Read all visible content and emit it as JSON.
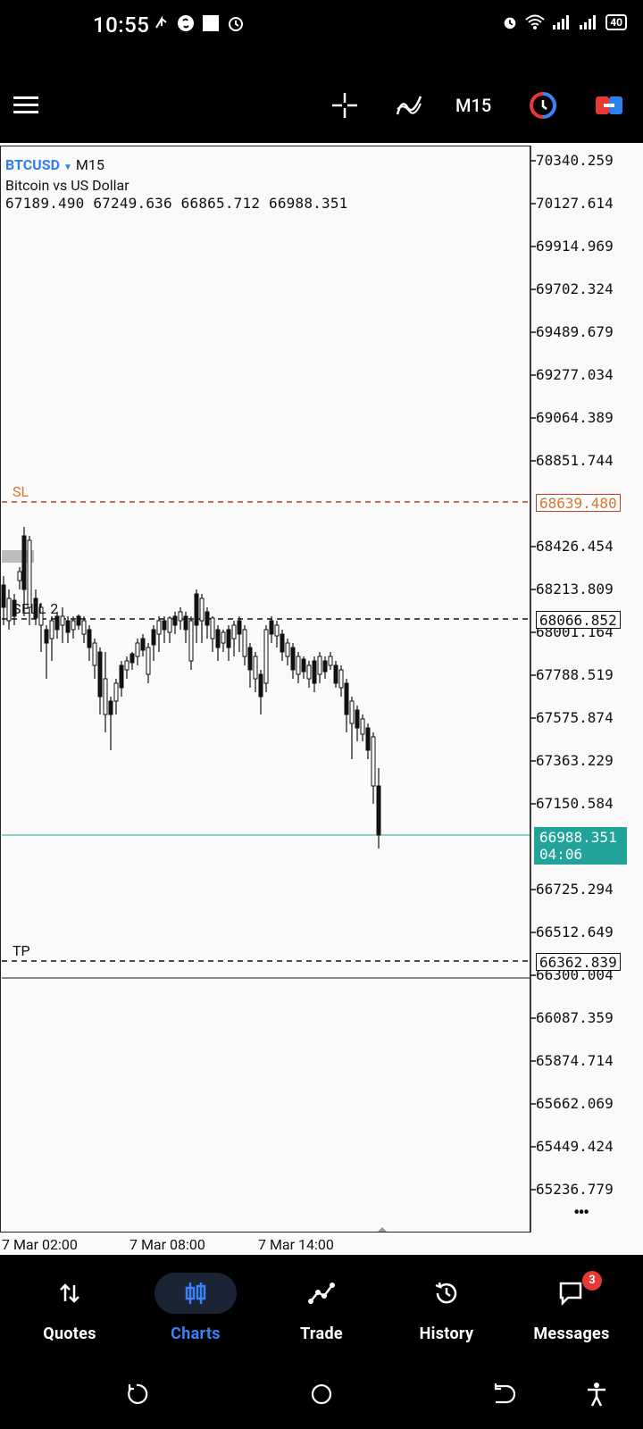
{
  "status": {
    "time": "10:55",
    "battery": "40"
  },
  "toolbar": {
    "timeframe": "M15"
  },
  "symbol": {
    "name": "BTCUSD",
    "timeframe": "M15",
    "description": "Bitcoin vs US Dollar",
    "ohlc": "67189.490 67249.636 66865.712 66988.351"
  },
  "price_axis": [
    "70340.259",
    "70127.614",
    "69914.969",
    "69702.324",
    "69489.679",
    "69277.034",
    "69064.389",
    "68851.744",
    "68426.454",
    "68213.809",
    "68001.164",
    "67788.519",
    "67575.874",
    "67363.229",
    "67150.584",
    "66725.294",
    "66512.649",
    "66300.004",
    "66087.359",
    "65874.714",
    "65662.069",
    "65449.424",
    "65236.779"
  ],
  "levels": {
    "sl_label": "SL",
    "sl_price": "68639.480",
    "entry_label": "SELL 2",
    "entry_price": "68066.852",
    "tp_label": "TP",
    "tp_price": "66362.839",
    "current_price": "66988.351",
    "countdown": "04:06"
  },
  "time_axis": [
    "7 Mar 02:00",
    "7 Mar 08:00",
    "7 Mar 14:00"
  ],
  "nav": [
    {
      "label": "Quotes"
    },
    {
      "label": "Charts"
    },
    {
      "label": "Trade"
    },
    {
      "label": "History"
    },
    {
      "label": "Messages",
      "badge": "3"
    }
  ],
  "colors": {
    "accent": "#3b82f6",
    "sl": "#d2782a",
    "current": "#21a39a"
  }
}
